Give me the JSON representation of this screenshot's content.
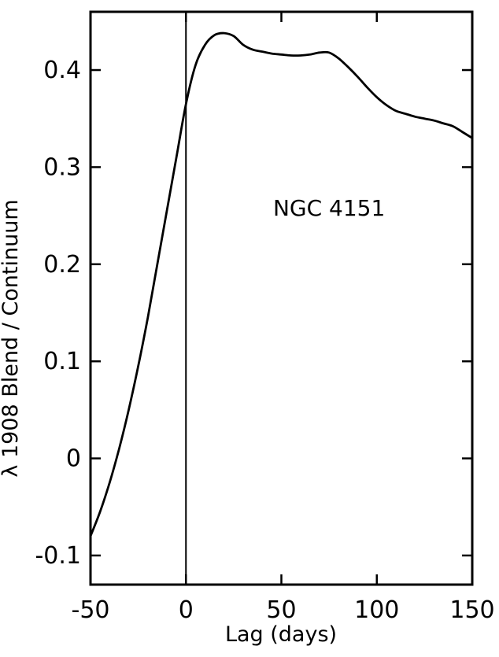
{
  "chart_data": {
    "type": "line",
    "xlabel": "Lag (days)",
    "ylabel": "λ 1908 Blend / Continuum",
    "xlim": [
      -50,
      150
    ],
    "ylim": [
      -0.13,
      0.46
    ],
    "xticks": [
      -50,
      0,
      50,
      100,
      150
    ],
    "xtick_labels": [
      "-50",
      "0",
      "50",
      "100",
      "150"
    ],
    "yticks": [
      -0.1,
      0,
      0.1,
      0.2,
      0.3,
      0.4
    ],
    "ytick_labels": [
      "-0.1",
      "0",
      "0.1",
      "0.2",
      "0.3",
      "0.4"
    ],
    "grid": false,
    "vline_x": 0,
    "annotation": {
      "text": "NGC 4151",
      "x": 75,
      "y": 0.25
    },
    "series": [
      {
        "x": [
          -50,
          -45,
          -40,
          -35,
          -30,
          -25,
          -20,
          -15,
          -10,
          -5,
          0,
          5,
          10,
          15,
          20,
          25,
          30,
          35,
          40,
          45,
          50,
          55,
          60,
          65,
          70,
          75,
          80,
          85,
          90,
          95,
          100,
          105,
          110,
          115,
          120,
          125,
          130,
          135,
          140,
          145,
          150
        ],
        "y": [
          -0.08,
          -0.055,
          -0.025,
          0.01,
          0.05,
          0.095,
          0.145,
          0.2,
          0.255,
          0.31,
          0.365,
          0.405,
          0.426,
          0.436,
          0.438,
          0.435,
          0.426,
          0.421,
          0.419,
          0.417,
          0.416,
          0.415,
          0.415,
          0.416,
          0.418,
          0.418,
          0.412,
          0.403,
          0.393,
          0.382,
          0.372,
          0.364,
          0.358,
          0.355,
          0.352,
          0.35,
          0.348,
          0.345,
          0.342,
          0.336,
          0.33
        ]
      }
    ]
  }
}
